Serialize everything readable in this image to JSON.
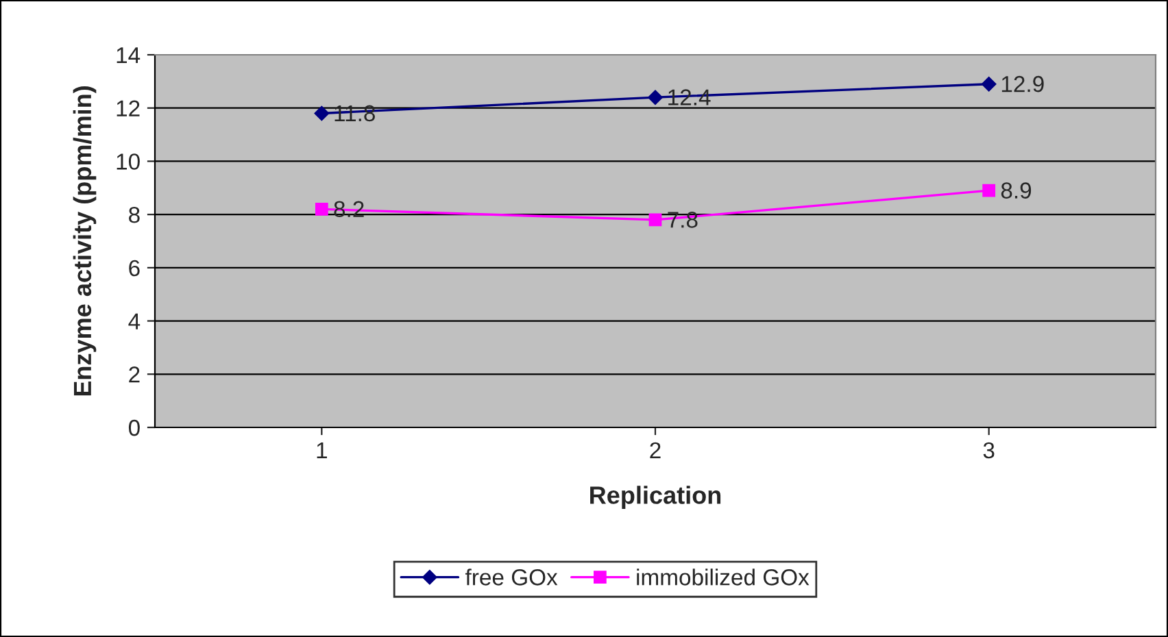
{
  "chart_data": {
    "type": "line",
    "xlabel": "Replication",
    "ylabel": "Enzyme activity (ppm/min)",
    "categories": [
      "1",
      "2",
      "3"
    ],
    "series": [
      {
        "name": "free GOx",
        "color": "#000080",
        "marker": "diamond",
        "values": [
          11.8,
          12.4,
          12.9
        ]
      },
      {
        "name": "immobilized GOx",
        "color": "#ff00ff",
        "marker": "square",
        "values": [
          8.2,
          7.8,
          8.9
        ]
      }
    ],
    "ylim": [
      0,
      14
    ],
    "yticks": [
      0,
      2,
      4,
      6,
      8,
      10,
      12,
      14
    ],
    "grid": "y",
    "legend": "bottom",
    "data_labels": true,
    "line_style": "solid"
  }
}
